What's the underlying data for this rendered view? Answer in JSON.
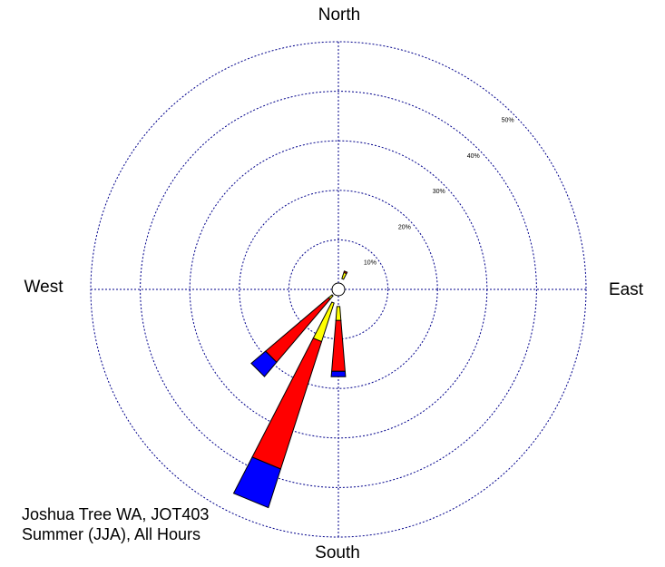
{
  "chart_data": {
    "type": "wind-rose",
    "title_lines": [
      "Joshua Tree WA, JOT403",
      "Summer (JJA), All Hours"
    ],
    "directions": {
      "north": "North",
      "south": "South",
      "east": "East",
      "west": "West"
    },
    "ring_labels": [
      "10%",
      "20%",
      "30%",
      "40%",
      "50%"
    ],
    "ring_values": [
      10,
      20,
      30,
      40,
      50
    ],
    "rmax": 50,
    "grid": true,
    "colors": {
      "grid": "#00008b",
      "ring": "#00008b",
      "calm": "#ffffff",
      "bin1": "#ffff00",
      "bin2": "#ff0000",
      "bin3": "#0000ff"
    },
    "petals": [
      {
        "direction_deg": 22.5,
        "name": "NNE",
        "cumulative": [
          1.0,
          2.3,
          2.6,
          2.6
        ]
      },
      {
        "direction_deg": 180,
        "name": "S",
        "cumulative": [
          2.2,
          5.0,
          15.3,
          16.4
        ]
      },
      {
        "direction_deg": 202.5,
        "name": "SSW",
        "cumulative": [
          1.6,
          9.8,
          36.8,
          45.0
        ]
      },
      {
        "direction_deg": 225,
        "name": "SW",
        "cumulative": [
          0.4,
          1.3,
          18.0,
          21.8
        ]
      }
    ]
  }
}
